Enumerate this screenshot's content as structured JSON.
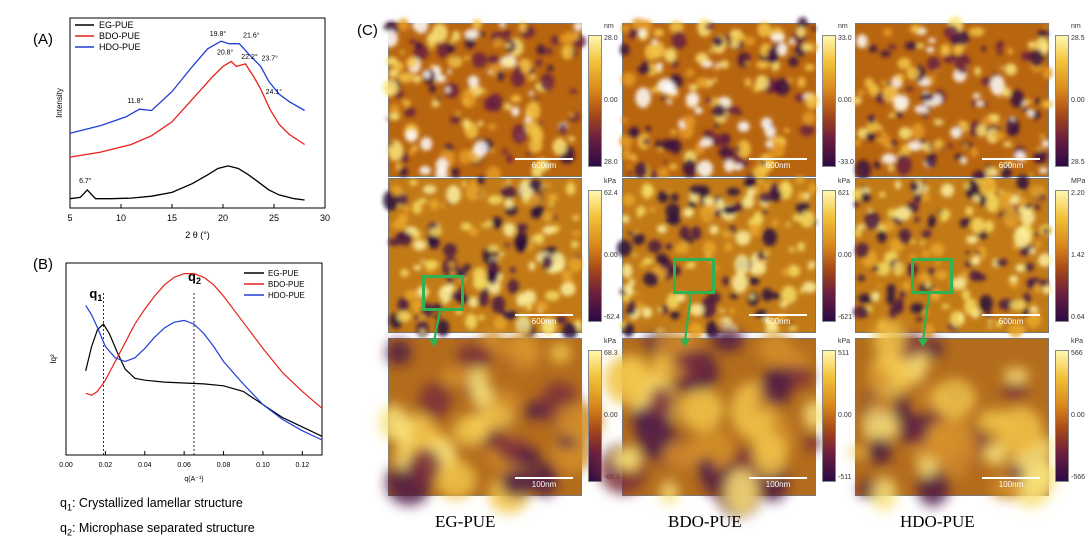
{
  "colors": {
    "eg": "#000000",
    "bdo": "#e8211c",
    "hdo": "#1f3fd6",
    "zoom": "#2fb24f"
  },
  "panel_labels": {
    "a": "(A)",
    "b": "(B)",
    "c": "(C)"
  },
  "chart_data": [
    {
      "type": "line",
      "xlabel": "2 θ (°)",
      "ylabel": "Intensity",
      "xlim": [
        5,
        30
      ],
      "xticks": [
        "5",
        "10",
        "15",
        "20",
        "25",
        "30"
      ],
      "legend_position": "top-left",
      "series": [
        {
          "name": "EG-PUE",
          "key": "eg",
          "x": [
            5,
            6,
            6.7,
            7.5,
            9,
            11,
            13,
            15,
            17,
            18.5,
            19.5,
            20.5,
            21.5,
            22.5,
            23.5,
            24.5,
            25.5,
            27,
            28
          ],
          "y": [
            0.05,
            0.06,
            0.12,
            0.05,
            0.05,
            0.055,
            0.07,
            0.1,
            0.17,
            0.24,
            0.29,
            0.31,
            0.29,
            0.24,
            0.18,
            0.12,
            0.08,
            0.05,
            0.04
          ]
        },
        {
          "name": "BDO-PUE",
          "key": "bdo",
          "x": [
            5,
            8,
            11,
            13,
            15,
            17,
            19,
            20,
            20.8,
            21.3,
            22.2,
            23,
            23.7,
            24.1,
            24.6,
            25.5,
            26.5,
            28
          ],
          "y": [
            0.38,
            0.42,
            0.48,
            0.55,
            0.66,
            0.84,
            1.02,
            1.1,
            1.14,
            1.1,
            1.12,
            1.02,
            0.92,
            0.85,
            0.76,
            0.64,
            0.56,
            0.48
          ]
        },
        {
          "name": "HDO-PUE",
          "key": "hdo",
          "x": [
            5,
            8,
            10.5,
            11.8,
            13,
            15,
            17,
            18.5,
            19.8,
            20.6,
            21.6,
            22.5,
            23.7,
            24.5,
            25.5,
            26.5,
            28
          ],
          "y": [
            0.57,
            0.63,
            0.7,
            0.76,
            0.75,
            0.9,
            1.1,
            1.24,
            1.3,
            1.28,
            1.28,
            1.2,
            1.1,
            0.98,
            0.88,
            0.82,
            0.75
          ]
        }
      ],
      "annotations": [
        {
          "text": "6.7°",
          "x": 6.7,
          "y": 0.12,
          "series": "eg"
        },
        {
          "text": "11.8°",
          "x": 11.8,
          "y": 0.76,
          "series": "hdo"
        },
        {
          "text": "19.8°",
          "x": 19.8,
          "y": 1.3,
          "series": "hdo"
        },
        {
          "text": "21.6°",
          "x": 21.6,
          "y": 1.28,
          "series": "hdo"
        },
        {
          "text": "23.7°",
          "x": 23.7,
          "y": 1.1,
          "series": "hdo"
        },
        {
          "text": "20.8°",
          "x": 20.8,
          "y": 1.14,
          "series": "bdo"
        },
        {
          "text": "22.2°",
          "x": 22.2,
          "y": 1.12,
          "series": "bdo"
        },
        {
          "text": "24.1°",
          "x": 24.1,
          "y": 0.85,
          "series": "bdo"
        }
      ]
    },
    {
      "type": "line",
      "xlabel": "q(A⁻¹)",
      "ylabel": "Iq²",
      "xlim": [
        0,
        0.13
      ],
      "xticks": [
        "0.00",
        "0.02",
        "0.04",
        "0.06",
        "0.08",
        "0.10",
        "0.12"
      ],
      "legend_position": "top-right",
      "reference_lines": [
        {
          "label": "q1",
          "x": 0.019
        },
        {
          "label": "q2",
          "x": 0.065
        }
      ],
      "series": [
        {
          "name": "EG-PUE",
          "key": "eg",
          "x": [
            0.01,
            0.013,
            0.016,
            0.019,
            0.022,
            0.026,
            0.03,
            0.035,
            0.04,
            0.05,
            0.06,
            0.07,
            0.08,
            0.09,
            0.1,
            0.11,
            0.12,
            0.13
          ],
          "y": [
            0.45,
            0.58,
            0.67,
            0.7,
            0.65,
            0.55,
            0.46,
            0.41,
            0.4,
            0.39,
            0.385,
            0.38,
            0.37,
            0.34,
            0.27,
            0.2,
            0.15,
            0.1
          ]
        },
        {
          "name": "BDO-PUE",
          "key": "bdo",
          "x": [
            0.01,
            0.013,
            0.016,
            0.02,
            0.025,
            0.03,
            0.035,
            0.04,
            0.045,
            0.05,
            0.055,
            0.06,
            0.065,
            0.07,
            0.075,
            0.08,
            0.09,
            0.1,
            0.11,
            0.12,
            0.13
          ],
          "y": [
            0.33,
            0.32,
            0.34,
            0.4,
            0.5,
            0.6,
            0.7,
            0.78,
            0.85,
            0.91,
            0.95,
            0.97,
            0.97,
            0.95,
            0.91,
            0.85,
            0.71,
            0.57,
            0.44,
            0.34,
            0.25
          ]
        },
        {
          "name": "HDO-PUE",
          "key": "hdo",
          "x": [
            0.01,
            0.013,
            0.016,
            0.02,
            0.025,
            0.03,
            0.035,
            0.04,
            0.045,
            0.05,
            0.055,
            0.06,
            0.065,
            0.07,
            0.075,
            0.08,
            0.09,
            0.1,
            0.11,
            0.12,
            0.13
          ],
          "y": [
            0.8,
            0.75,
            0.68,
            0.58,
            0.52,
            0.5,
            0.52,
            0.57,
            0.63,
            0.68,
            0.71,
            0.72,
            0.7,
            0.65,
            0.58,
            0.5,
            0.38,
            0.27,
            0.19,
            0.13,
            0.08
          ]
        }
      ]
    }
  ],
  "notes": [
    {
      "symbol": "q",
      "sub": "1",
      "text": ": Crystallized lamellar structure"
    },
    {
      "symbol": "q",
      "sub": "2",
      "text": ": Microphase separated structure"
    }
  ],
  "afm": {
    "samples": [
      "EG-PUE",
      "BDO-PUE",
      "HDO-PUE"
    ],
    "rows": [
      {
        "kind": "height",
        "scalebar": "600nm",
        "colorbars": [
          {
            "unit": "nm",
            "top": "28.0",
            "mid": "0.00",
            "bottom": "28.0"
          },
          {
            "unit": "nm",
            "top": "33.0",
            "mid": "0.00",
            "bottom": "-33.0"
          },
          {
            "unit": "nm",
            "top": "28.5",
            "mid": "0.00",
            "bottom": "28.5"
          }
        ]
      },
      {
        "kind": "modulus",
        "scalebar": "600nm",
        "colorbars": [
          {
            "unit": "kPa",
            "top": "62.4",
            "mid": "0.00",
            "bottom": "-62.4"
          },
          {
            "unit": "kPa",
            "top": "621",
            "mid": "0.00",
            "bottom": "-621"
          },
          {
            "unit": "MPa",
            "top": "2.20",
            "mid": "1.42",
            "bottom": "0.64"
          }
        ]
      },
      {
        "kind": "zoom",
        "scalebar": "100nm",
        "colorbars": [
          {
            "unit": "kPa",
            "top": "68.3",
            "mid": "0.00",
            "bottom": "-68.3"
          },
          {
            "unit": "kPa",
            "top": "511",
            "mid": "0.00",
            "bottom": "-511"
          },
          {
            "unit": "kPa",
            "top": "566",
            "mid": "0.00",
            "bottom": "-566"
          }
        ]
      }
    ]
  }
}
